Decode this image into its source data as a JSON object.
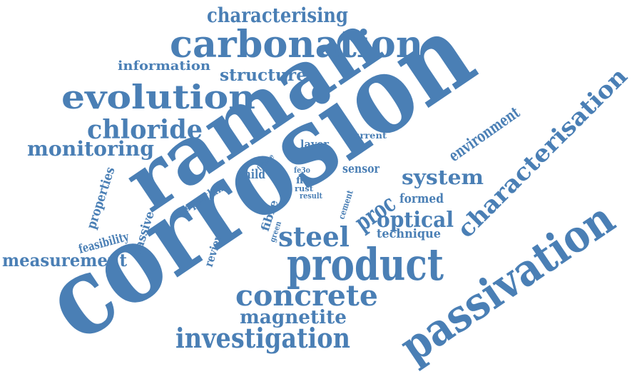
{
  "word_color": "#4a7fb5",
  "background_color": "#ffffff",
  "words": [
    {
      "key": "corrosion",
      "text": "corrosion"
    },
    {
      "key": "raman",
      "text": "raman"
    },
    {
      "key": "passivation",
      "text": "passivation"
    },
    {
      "key": "characterisation",
      "text": "characterisation"
    },
    {
      "key": "product",
      "text": "product"
    },
    {
      "key": "carbonation",
      "text": "carbonation"
    },
    {
      "key": "evolution",
      "text": "evolution"
    },
    {
      "key": "concrete",
      "text": "concrete"
    },
    {
      "key": "investigation",
      "text": "investigation"
    },
    {
      "key": "characterising",
      "text": "characterising"
    },
    {
      "key": "chloride",
      "text": "chloride"
    },
    {
      "key": "monitoring",
      "text": "monitoring"
    },
    {
      "key": "steel",
      "text": "steel"
    },
    {
      "key": "system",
      "text": "system"
    },
    {
      "key": "optical",
      "text": "optical"
    },
    {
      "key": "magnetite",
      "text": "magnetite"
    },
    {
      "key": "measurement",
      "text": "measurement"
    },
    {
      "key": "structure",
      "text": "structure"
    },
    {
      "key": "information",
      "text": "information"
    },
    {
      "key": "environment",
      "text": "environment"
    },
    {
      "key": "proc",
      "text": "proc"
    },
    {
      "key": "properties",
      "text": "properties"
    },
    {
      "key": "feasibility",
      "text": "feasibility"
    },
    {
      "key": "passive",
      "text": "passive"
    },
    {
      "key": "review",
      "text": "review"
    },
    {
      "key": "fibre",
      "text": "fibre"
    },
    {
      "key": "sensor",
      "text": "sensor"
    },
    {
      "key": "formed",
      "text": "formed"
    },
    {
      "key": "technique",
      "text": "technique"
    },
    {
      "key": "mild",
      "text": "mild"
    },
    {
      "key": "portland",
      "text": "portland"
    },
    {
      "key": "layer",
      "text": "layer"
    },
    {
      "key": "current",
      "text": "current"
    },
    {
      "key": "cement",
      "text": "cement"
    },
    {
      "key": "signal",
      "text": "signal"
    },
    {
      "key": "future",
      "text": "future"
    },
    {
      "key": "green",
      "text": "green"
    },
    {
      "key": "fe3o",
      "text": "fe3o"
    },
    {
      "key": "film",
      "text": "film"
    },
    {
      "key": "rust",
      "text": "rust"
    },
    {
      "key": "result",
      "text": "result"
    }
  ]
}
